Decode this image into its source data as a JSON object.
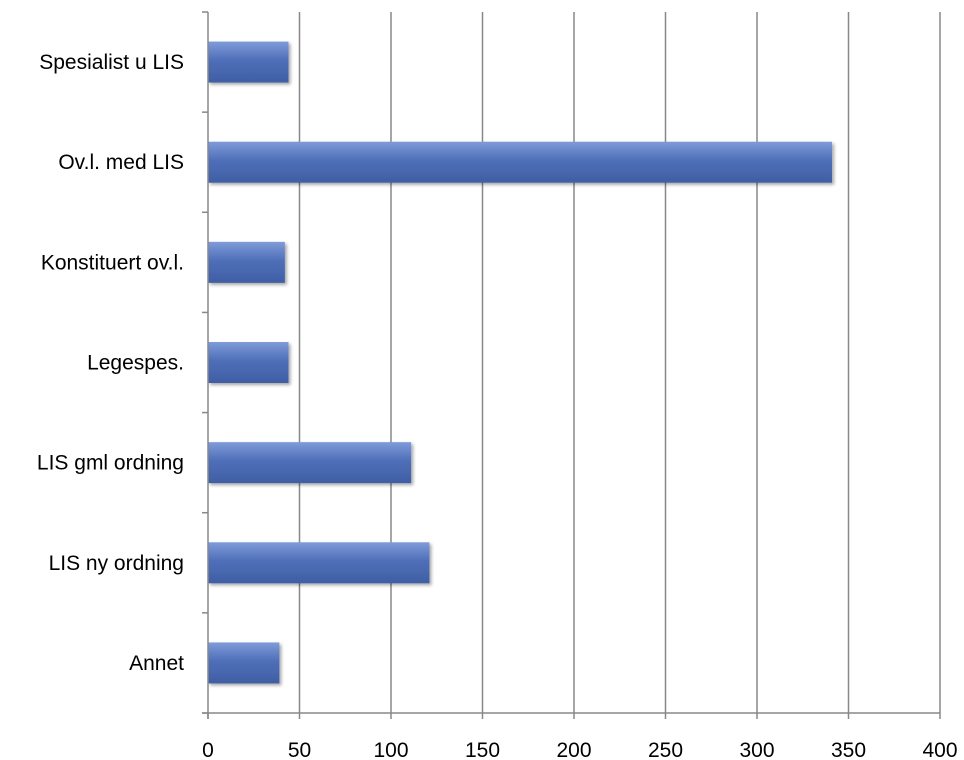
{
  "chart_data": {
    "type": "bar",
    "orientation": "horizontal",
    "title": "",
    "xlabel": "",
    "ylabel": "",
    "categories": [
      "Spesialist u LIS",
      "Ov.l. med LIS",
      "Konstituert ov.l.",
      "Legespes.",
      "LIS gml ordning",
      "LIS ny ordning",
      "Annet"
    ],
    "values": [
      44,
      341,
      42,
      44,
      111,
      121,
      39
    ],
    "xlim": [
      0,
      400
    ],
    "x_ticks": [
      0,
      50,
      100,
      150,
      200,
      250,
      300,
      350,
      400
    ],
    "grid": "vertical",
    "legend": "none",
    "bar_color": "#4F6FB8",
    "bar_color_light": "#7F9BD9",
    "bar_color_dark": "#3F5EA4",
    "grid_color": "#888888",
    "axis_color": "#888888"
  }
}
